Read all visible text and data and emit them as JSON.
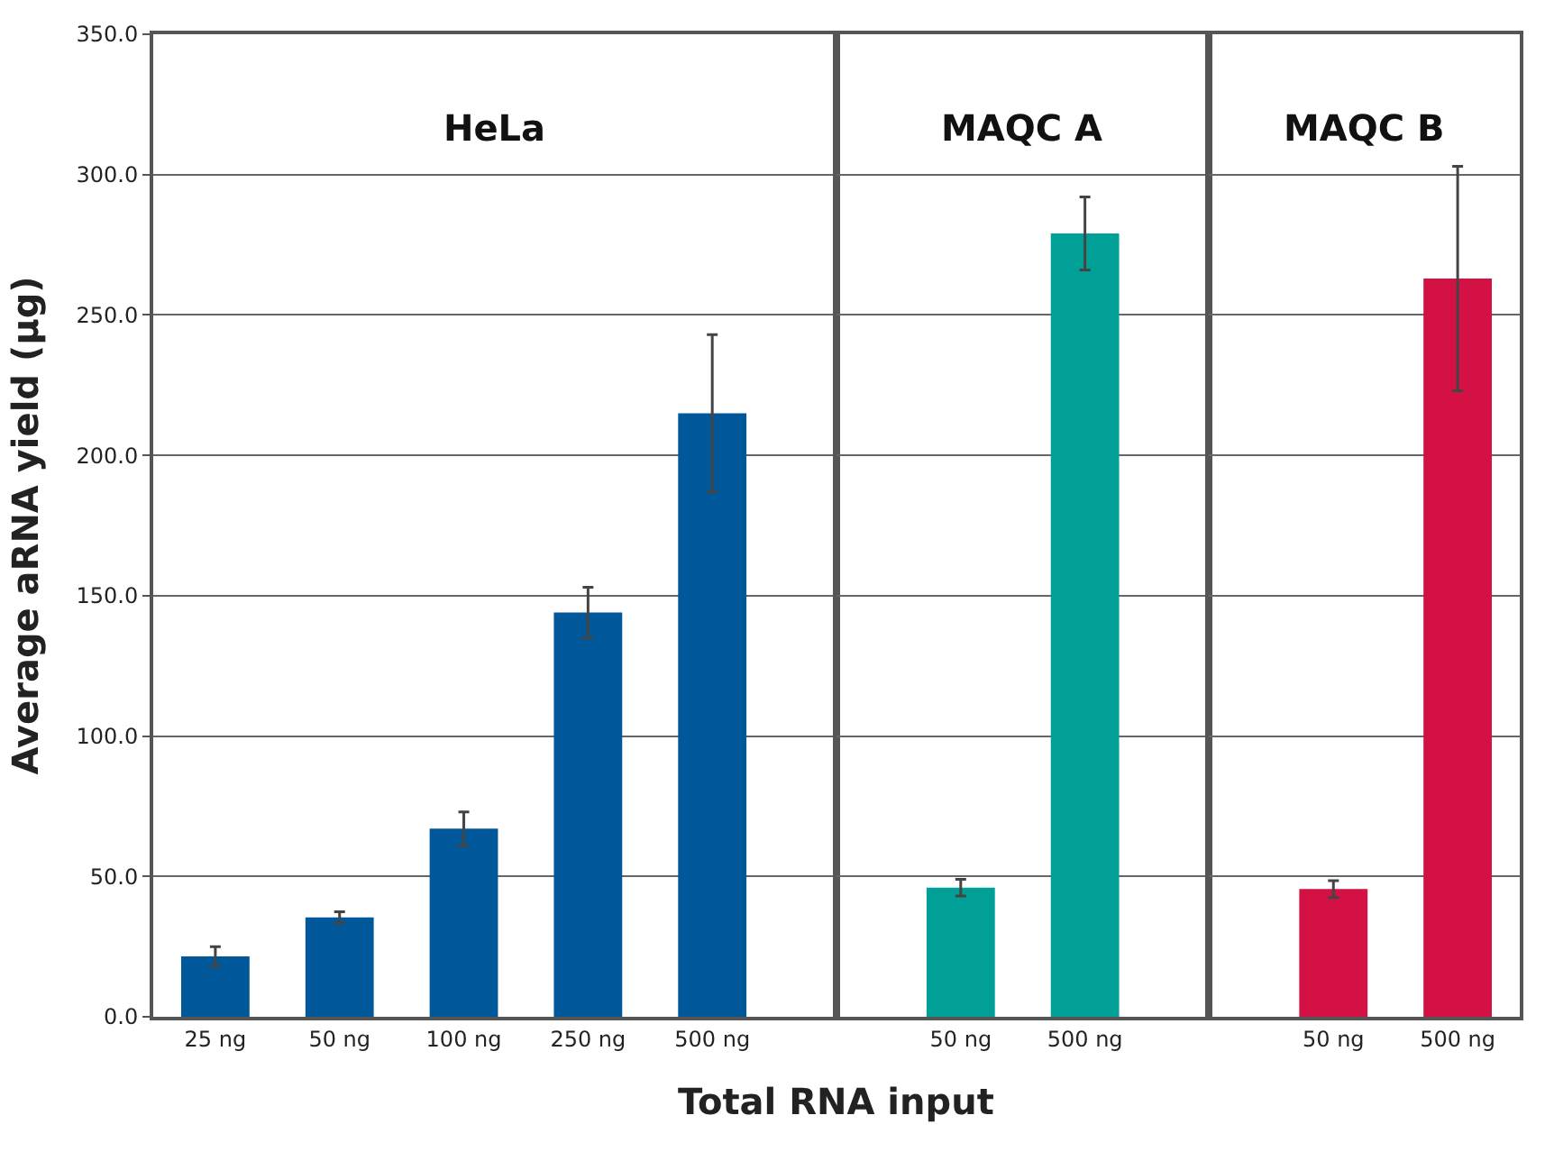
{
  "chart_data": [
    {
      "type": "bar",
      "title": "HeLa",
      "xlabel": "Total RNA input",
      "ylabel": "Average aRNA yield (µg)",
      "categories": [
        "25 ng",
        "50 ng",
        "100 ng",
        "250 ng",
        "500 ng"
      ],
      "values": [
        21.5,
        35.4,
        67,
        144,
        215
      ],
      "errors": [
        3.5,
        2,
        6,
        9,
        28
      ],
      "colors": [
        "#00589a",
        "#00589a",
        "#00589a",
        "#00589a",
        "#00589a"
      ],
      "ylim": [
        0,
        350
      ],
      "yticks": [
        {
          "value": 0,
          "label": "0.0"
        },
        {
          "value": 50,
          "label": "50.0"
        },
        {
          "value": 100,
          "label": "100.0"
        },
        {
          "value": 150,
          "label": "150.0"
        },
        {
          "value": 200,
          "label": "200.0"
        },
        {
          "value": 250,
          "label": "250.0"
        },
        {
          "value": 300,
          "label": "300.0"
        },
        {
          "value": 350,
          "label": "350.0"
        }
      ],
      "grid": "y"
    },
    {
      "type": "bar",
      "title": "MAQC A",
      "categories": [
        "50 ng",
        "500 ng"
      ],
      "values": [
        46,
        279
      ],
      "errors": [
        3,
        13
      ],
      "colors": [
        "#00a096",
        "#00a096"
      ],
      "ylim": [
        0,
        350
      ],
      "yticks": [
        {
          "value": 0,
          "label": null
        },
        {
          "value": 50,
          "label": null
        },
        {
          "value": 100,
          "label": null
        },
        {
          "value": 150,
          "label": null
        },
        {
          "value": 200,
          "label": null
        },
        {
          "value": 250,
          "label": null
        },
        {
          "value": 300,
          "label": null
        },
        {
          "value": 350,
          "label": null
        }
      ],
      "tick_labels": "x",
      "grid": "y"
    },
    {
      "type": "bar",
      "title": "MAQC B",
      "categories": [
        "50 ng",
        "500 ng"
      ],
      "values": [
        45.5,
        263
      ],
      "errors": [
        3,
        40
      ],
      "colors": [
        "#d31145",
        "#d31145"
      ],
      "ylim": [
        0,
        350
      ],
      "yticks": [
        {
          "value": 0,
          "label": null
        },
        {
          "value": 50,
          "label": null
        },
        {
          "value": 100,
          "label": null
        },
        {
          "value": 150,
          "label": null
        },
        {
          "value": 200,
          "label": null
        },
        {
          "value": 250,
          "label": null
        },
        {
          "value": 300,
          "label": null
        },
        {
          "value": 350,
          "label": null
        }
      ],
      "tick_labels": "x",
      "grid": "y"
    }
  ]
}
